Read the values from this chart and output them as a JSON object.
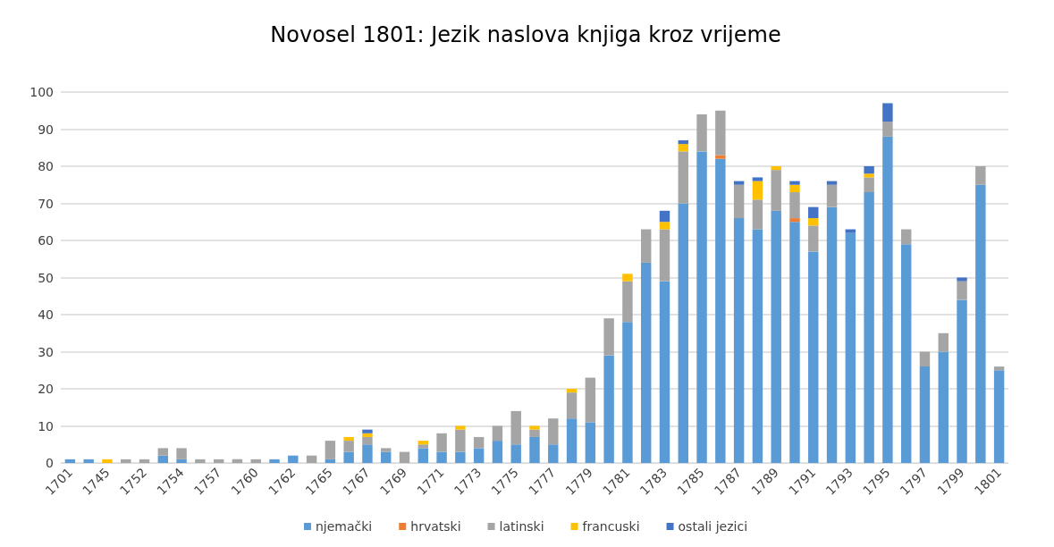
{
  "chart_data": {
    "type": "bar",
    "title": "Novosel 1801: Jezik naslova knjiga kroz vrijeme",
    "stacked": true,
    "grid": "y",
    "legend": "bottom",
    "ylim": [
      0,
      100
    ],
    "yticks": [
      0,
      10,
      20,
      30,
      40,
      50,
      60,
      70,
      80,
      90,
      100
    ],
    "categories": [
      "1701",
      null,
      "1745",
      null,
      "1752",
      null,
      "1754",
      null,
      "1757",
      null,
      "1760",
      null,
      "1762",
      null,
      "1765",
      null,
      "1767",
      null,
      "1769",
      null,
      "1771",
      null,
      "1773",
      null,
      "1775",
      null,
      "1777",
      null,
      "1779",
      null,
      "1781",
      null,
      "1783",
      null,
      "1785",
      null,
      "1787",
      null,
      "1789",
      null,
      "1791",
      null,
      "1793",
      null,
      "1795",
      null,
      "1797",
      null,
      "1799",
      null,
      "1801"
    ],
    "series": [
      {
        "name": "njemački",
        "color": "#5b9bd5",
        "values": [
          1,
          1,
          0,
          0,
          0,
          2,
          1,
          0,
          0,
          0,
          0,
          1,
          2,
          0,
          1,
          3,
          5,
          3,
          0,
          4,
          3,
          3,
          4,
          6,
          5,
          7,
          5,
          12,
          11,
          29,
          38,
          54,
          49,
          70,
          84,
          82,
          66,
          63,
          68,
          65,
          57,
          69,
          62,
          73,
          88,
          59,
          26,
          30,
          44,
          75,
          25
        ]
      },
      {
        "name": "hrvatski",
        "color": "#ed7d31",
        "values": [
          0,
          0,
          0,
          0,
          0,
          0,
          0,
          0,
          0,
          0,
          0,
          0,
          0,
          0,
          0,
          0,
          0,
          0,
          0,
          0,
          0,
          0,
          0,
          0,
          0,
          0,
          0,
          0,
          0,
          0,
          0,
          0,
          0,
          0,
          0,
          1,
          0,
          0,
          0,
          1,
          0,
          0,
          0,
          0,
          0,
          0,
          0,
          0,
          0,
          0,
          0
        ]
      },
      {
        "name": "latinski",
        "color": "#a5a5a5",
        "values": [
          0,
          0,
          0,
          1,
          1,
          2,
          3,
          1,
          1,
          1,
          1,
          0,
          0,
          2,
          5,
          3,
          2,
          1,
          3,
          1,
          5,
          6,
          3,
          4,
          9,
          2,
          7,
          7,
          12,
          10,
          11,
          9,
          14,
          14,
          10,
          12,
          9,
          8,
          11,
          7,
          7,
          6,
          0,
          4,
          4,
          4,
          4,
          5,
          5,
          5,
          1
        ]
      },
      {
        "name": "francuski",
        "color": "#ffc000",
        "values": [
          0,
          0,
          1,
          0,
          0,
          0,
          0,
          0,
          0,
          0,
          0,
          0,
          0,
          0,
          0,
          1,
          1,
          0,
          0,
          1,
          0,
          1,
          0,
          0,
          0,
          1,
          0,
          1,
          0,
          0,
          2,
          0,
          2,
          2,
          0,
          0,
          0,
          5,
          1,
          2,
          2,
          0,
          0,
          1,
          0,
          0,
          0,
          0,
          0,
          0,
          0
        ]
      },
      {
        "name": "ostali jezici",
        "color": "#4472c4",
        "values": [
          0,
          0,
          0,
          0,
          0,
          0,
          0,
          0,
          0,
          0,
          0,
          0,
          0,
          0,
          0,
          0,
          1,
          0,
          0,
          0,
          0,
          0,
          0,
          0,
          0,
          0,
          0,
          0,
          0,
          0,
          0,
          0,
          3,
          1,
          0,
          0,
          1,
          1,
          0,
          1,
          3,
          1,
          1,
          2,
          5,
          0,
          0,
          0,
          1,
          0,
          0
        ]
      }
    ]
  }
}
